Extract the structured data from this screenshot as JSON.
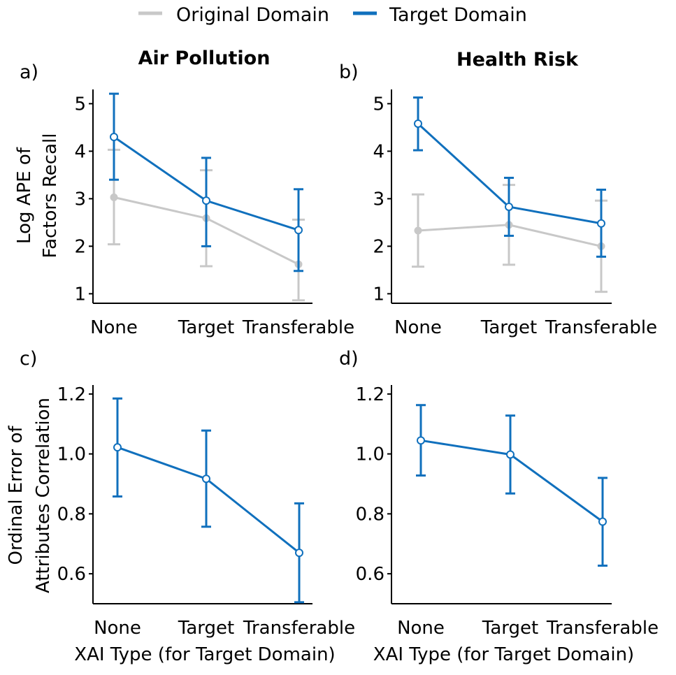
{
  "colors": {
    "original": "#c8c8c8",
    "target": "#1070bd",
    "axis": "#000000"
  },
  "legend": {
    "items": [
      {
        "key": "original",
        "label": "Original Domain"
      },
      {
        "key": "target",
        "label": "Target Domain"
      }
    ]
  },
  "chart_data": [
    {
      "id": "a",
      "panel_label": "a)",
      "title": "Air Pollution",
      "type": "line",
      "ylabel": [
        "Log APE of",
        "Factors Recall"
      ],
      "xlabel": "",
      "categories": [
        "None",
        "Target",
        "Transferable"
      ],
      "y_ticks": [
        "1",
        "2",
        "3",
        "4",
        "5"
      ],
      "ylim": [
        0.8,
        5.3
      ],
      "error_bars": true,
      "series": [
        {
          "name": "Original Domain",
          "color_key": "original",
          "marker": "filled",
          "values": [
            3.03,
            2.59,
            1.62
          ],
          "lower": [
            2.04,
            1.58,
            0.86
          ],
          "upper": [
            4.03,
            3.6,
            2.56
          ]
        },
        {
          "name": "Target Domain",
          "color_key": "target",
          "marker": "open",
          "values": [
            4.3,
            2.96,
            2.34
          ],
          "lower": [
            3.4,
            2.0,
            1.48
          ],
          "upper": [
            5.21,
            3.86,
            3.2
          ]
        }
      ]
    },
    {
      "id": "b",
      "panel_label": "b)",
      "title": "Health Risk",
      "type": "line",
      "ylabel": [],
      "xlabel": "",
      "categories": [
        "None",
        "Target",
        "Transferable"
      ],
      "y_ticks": [
        "1",
        "2",
        "3",
        "4",
        "5"
      ],
      "ylim": [
        0.8,
        5.3
      ],
      "error_bars": true,
      "series": [
        {
          "name": "Original Domain",
          "color_key": "original",
          "marker": "filled",
          "values": [
            2.33,
            2.45,
            2.0
          ],
          "lower": [
            1.57,
            1.61,
            1.04
          ],
          "upper": [
            3.09,
            3.29,
            2.96
          ]
        },
        {
          "name": "Target Domain",
          "color_key": "target",
          "marker": "open",
          "values": [
            4.58,
            2.83,
            2.48
          ],
          "lower": [
            4.02,
            2.22,
            1.78
          ],
          "upper": [
            5.13,
            3.44,
            3.19
          ]
        }
      ]
    },
    {
      "id": "c",
      "panel_label": "c)",
      "title": "",
      "type": "line",
      "ylabel": [
        "Ordinal Error of",
        "Attributes Correlation"
      ],
      "xlabel": "XAI Type (for Target Domain)",
      "categories": [
        "None",
        "Target",
        "Transferable"
      ],
      "y_ticks": [
        "0.6",
        "0.8",
        "1.0",
        "1.2"
      ],
      "ylim": [
        0.5,
        1.23
      ],
      "error_bars": true,
      "series": [
        {
          "name": "Target Domain",
          "color_key": "target",
          "marker": "open",
          "values": [
            1.022,
            0.917,
            0.67
          ],
          "lower": [
            0.858,
            0.757,
            0.505
          ],
          "upper": [
            1.185,
            1.078,
            0.835
          ]
        }
      ]
    },
    {
      "id": "d",
      "panel_label": "d)",
      "title": "",
      "type": "line",
      "ylabel": [],
      "xlabel": "XAI Type (for Target Domain)",
      "categories": [
        "None",
        "Target",
        "Transferable"
      ],
      "y_ticks": [
        "0.6",
        "0.8",
        "1.0",
        "1.2"
      ],
      "ylim": [
        0.5,
        1.23
      ],
      "error_bars": true,
      "series": [
        {
          "name": "Target Domain",
          "color_key": "target",
          "marker": "open",
          "values": [
            1.045,
            0.998,
            0.774
          ],
          "lower": [
            0.928,
            0.868,
            0.627
          ],
          "upper": [
            1.163,
            1.128,
            0.92
          ]
        }
      ]
    }
  ]
}
